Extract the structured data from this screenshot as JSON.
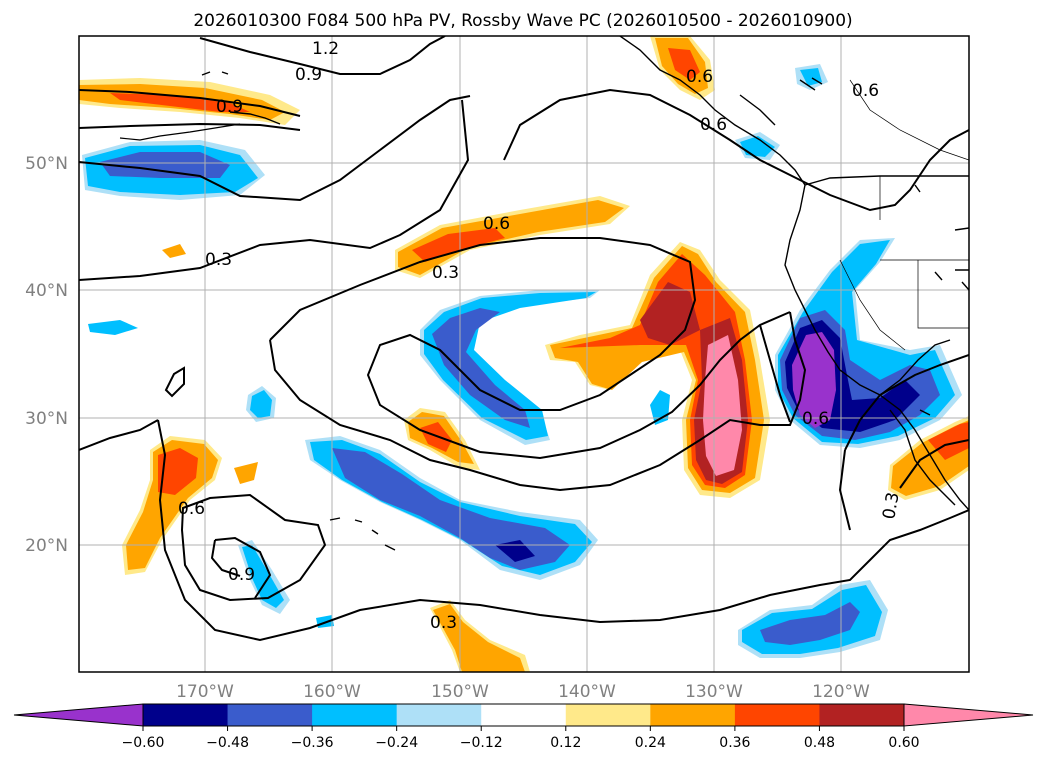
{
  "title": "2026010300 F084 500 hPa PV, Rossby Wave PC (2026010500 - 2026010900)",
  "lat_labels": [
    "50°N",
    "40°N",
    "30°N",
    "20°N"
  ],
  "lon_labels": [
    "170°W",
    "160°W",
    "150°W",
    "140°W",
    "130°W",
    "120°W"
  ],
  "colorbar": {
    "ticks": [
      "−0.60",
      "−0.48",
      "−0.36",
      "−0.24",
      "−0.12",
      "0.12",
      "0.24",
      "0.36",
      "0.48",
      "0.60"
    ],
    "colors": [
      "#9932cc",
      "#00008b",
      "#3a5ccc",
      "#00bfff",
      "#aee0f7",
      "#ffffff",
      "#ffe98a",
      "#ffa500",
      "#ff4500",
      "#b22222",
      "#ff88aa"
    ]
  },
  "contour_labels": [
    "0.9",
    "1.2",
    "0.9",
    "0.6",
    "0.3",
    "0.6",
    "0.3",
    "0.6",
    "0.9",
    "0.6",
    "0.6",
    "0.6",
    "0.3",
    "0.3"
  ],
  "colors": {
    "line": "#000000",
    "coast": "#000000",
    "grid": "#b0b0b0",
    "axis_text": "#808080"
  }
}
